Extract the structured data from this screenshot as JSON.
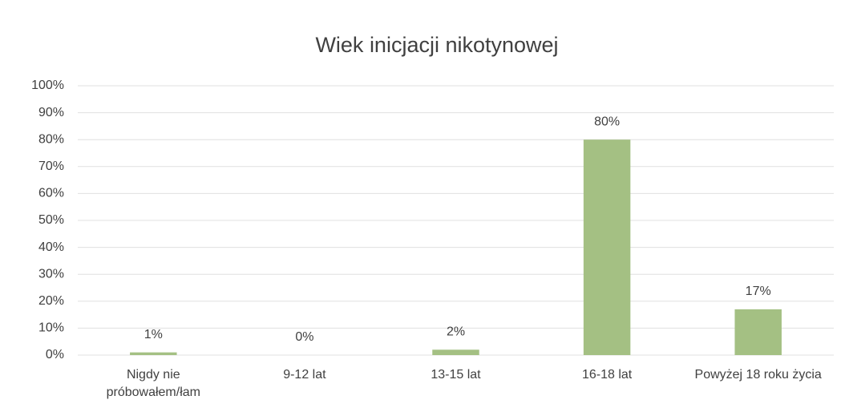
{
  "chart_data": {
    "type": "bar",
    "title": "Wiek inicjacji nikotynowej",
    "categories": [
      "Nigdy nie próbowałem/łam",
      "9-12 lat",
      "13-15 lat",
      "16-18 lat",
      "Powyżej 18 roku życia"
    ],
    "values": [
      1,
      0,
      2,
      80,
      17
    ],
    "value_labels": [
      "1%",
      "0%",
      "2%",
      "80%",
      "17%"
    ],
    "color": "#a4c083",
    "ylim": [
      0,
      100
    ],
    "yticks": [
      {
        "value": 0,
        "label": "0%"
      },
      {
        "value": 10,
        "label": "10%"
      },
      {
        "value": 20,
        "label": "20%"
      },
      {
        "value": 30,
        "label": "30%"
      },
      {
        "value": 40,
        "label": "40%"
      },
      {
        "value": 50,
        "label": "50%"
      },
      {
        "value": 60,
        "label": "60%"
      },
      {
        "value": 70,
        "label": "70%"
      },
      {
        "value": 80,
        "label": "80%"
      },
      {
        "value": 90,
        "label": "90%"
      },
      {
        "value": 100,
        "label": "100%"
      }
    ],
    "grid": true
  }
}
